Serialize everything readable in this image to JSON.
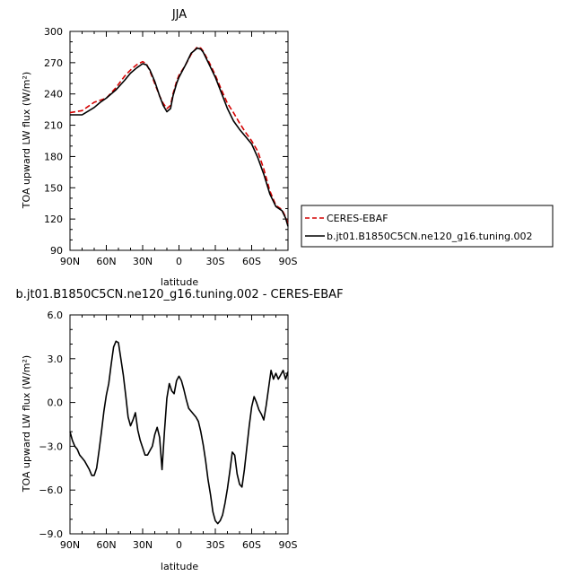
{
  "chart_data": [
    {
      "type": "line",
      "title": "JJA",
      "xlabel": "latitude",
      "ylabel": "TOA upward LW flux (W/m²)",
      "xlim": [
        90,
        -90
      ],
      "ylim": [
        90,
        300
      ],
      "xticks": [
        "90N",
        "60N",
        "30N",
        "0",
        "30S",
        "60S",
        "90S"
      ],
      "yticks": [
        "90",
        "120",
        "150",
        "180",
        "210",
        "240",
        "270",
        "300"
      ],
      "legend_position": "right",
      "series": [
        {
          "name": "CERES-EBAF",
          "color": "#d40000",
          "dash": "dashed",
          "x": [
            90,
            80,
            70,
            60,
            52,
            45,
            40,
            35,
            30,
            27,
            24,
            20,
            16,
            13,
            10,
            7,
            5,
            2,
            0,
            -5,
            -10,
            -15,
            -18,
            -20,
            -25,
            -30,
            -35,
            -40,
            -45,
            -50,
            -55,
            -60,
            -65,
            -70,
            -75,
            -80,
            -85,
            -88,
            -90
          ],
          "y": [
            222,
            224,
            232,
            236,
            246,
            257,
            263,
            268,
            271,
            269,
            262,
            250,
            238,
            231,
            226,
            229,
            240,
            252,
            258,
            267,
            278,
            285,
            284,
            281,
            270,
            258,
            244,
            231,
            222,
            212,
            203,
            195,
            185,
            168,
            147,
            133,
            129,
            122,
            115
          ]
        },
        {
          "name": "b.jt01.B1850C5CN.ne120_g16.tuning.002",
          "color": "#000000",
          "dash": "solid",
          "x": [
            90,
            80,
            70,
            65,
            60,
            52,
            45,
            40,
            35,
            30,
            27,
            24,
            20,
            16,
            13,
            10,
            7,
            5,
            2,
            0,
            -5,
            -10,
            -15,
            -18,
            -20,
            -25,
            -30,
            -35,
            -40,
            -45,
            -50,
            -55,
            -60,
            -65,
            -70,
            -75,
            -80,
            -85,
            -88,
            -90
          ],
          "y": [
            220,
            220,
            227,
            232,
            236,
            244,
            253,
            260,
            265,
            269,
            268,
            263,
            252,
            238,
            229,
            223,
            226,
            238,
            250,
            256,
            267,
            279,
            284,
            283,
            280,
            268,
            256,
            241,
            226,
            214,
            206,
            199,
            192,
            179,
            163,
            144,
            132,
            128,
            121,
            113
          ]
        }
      ]
    },
    {
      "type": "line",
      "title": "b.jt01.B1850C5CN.ne120_g16.tuning.002 - CERES-EBAF",
      "xlabel": "latitude",
      "ylabel": "TOA upward LW flux (W/m²)",
      "xlim": [
        90,
        -90
      ],
      "ylim": [
        -9,
        6
      ],
      "xticks": [
        "90N",
        "60N",
        "30N",
        "0",
        "30S",
        "60S",
        "90S"
      ],
      "yticks": [
        "−9.0",
        "−6.0",
        "−3.0",
        "0.0",
        "3.0",
        "6.0"
      ],
      "series": [
        {
          "color": "#000000",
          "dash": "solid",
          "x": [
            90,
            88,
            86,
            84,
            82,
            80,
            78,
            76,
            74,
            72,
            70,
            68,
            66,
            64,
            62,
            60,
            58,
            56,
            54,
            52,
            50,
            48,
            46,
            44,
            42,
            40,
            38,
            36,
            34,
            32,
            30,
            28,
            26,
            24,
            22,
            20,
            18,
            16,
            14,
            12,
            10,
            8,
            6,
            4,
            2,
            0,
            -2,
            -4,
            -6,
            -8,
            -10,
            -12,
            -14,
            -16,
            -18,
            -20,
            -22,
            -24,
            -26,
            -28,
            -30,
            -32,
            -34,
            -36,
            -38,
            -40,
            -42,
            -44,
            -46,
            -48,
            -50,
            -52,
            -54,
            -56,
            -58,
            -60,
            -62,
            -64,
            -66,
            -68,
            -70,
            -72,
            -74,
            -76,
            -78,
            -80,
            -82,
            -84,
            -86,
            -88,
            -90
          ],
          "y": [
            -2.0,
            -2.6,
            -3.0,
            -3.2,
            -3.6,
            -3.8,
            -4.0,
            -4.3,
            -4.6,
            -5.0,
            -5.0,
            -4.5,
            -3.3,
            -2.0,
            -0.6,
            0.5,
            1.3,
            2.6,
            3.8,
            4.2,
            4.1,
            3.0,
            1.9,
            0.5,
            -1.0,
            -1.6,
            -1.2,
            -0.7,
            -1.9,
            -2.6,
            -3.1,
            -3.6,
            -3.6,
            -3.3,
            -3.0,
            -2.2,
            -1.7,
            -2.4,
            -4.6,
            -2.0,
            0.3,
            1.3,
            0.8,
            0.6,
            1.5,
            1.8,
            1.5,
            0.9,
            0.2,
            -0.4,
            -0.6,
            -0.8,
            -1.0,
            -1.3,
            -2.0,
            -2.9,
            -4.0,
            -5.3,
            -6.3,
            -7.5,
            -8.1,
            -8.3,
            -8.1,
            -7.7,
            -6.9,
            -5.9,
            -4.7,
            -3.4,
            -3.6,
            -4.9,
            -5.6,
            -5.8,
            -4.6,
            -3.1,
            -1.6,
            -0.3,
            0.4,
            0.0,
            -0.5,
            -0.8,
            -1.2,
            -0.2,
            1.0,
            2.2,
            1.6,
            2.0,
            1.6,
            1.9,
            2.2,
            1.6,
            2.1
          ]
        }
      ]
    }
  ]
}
